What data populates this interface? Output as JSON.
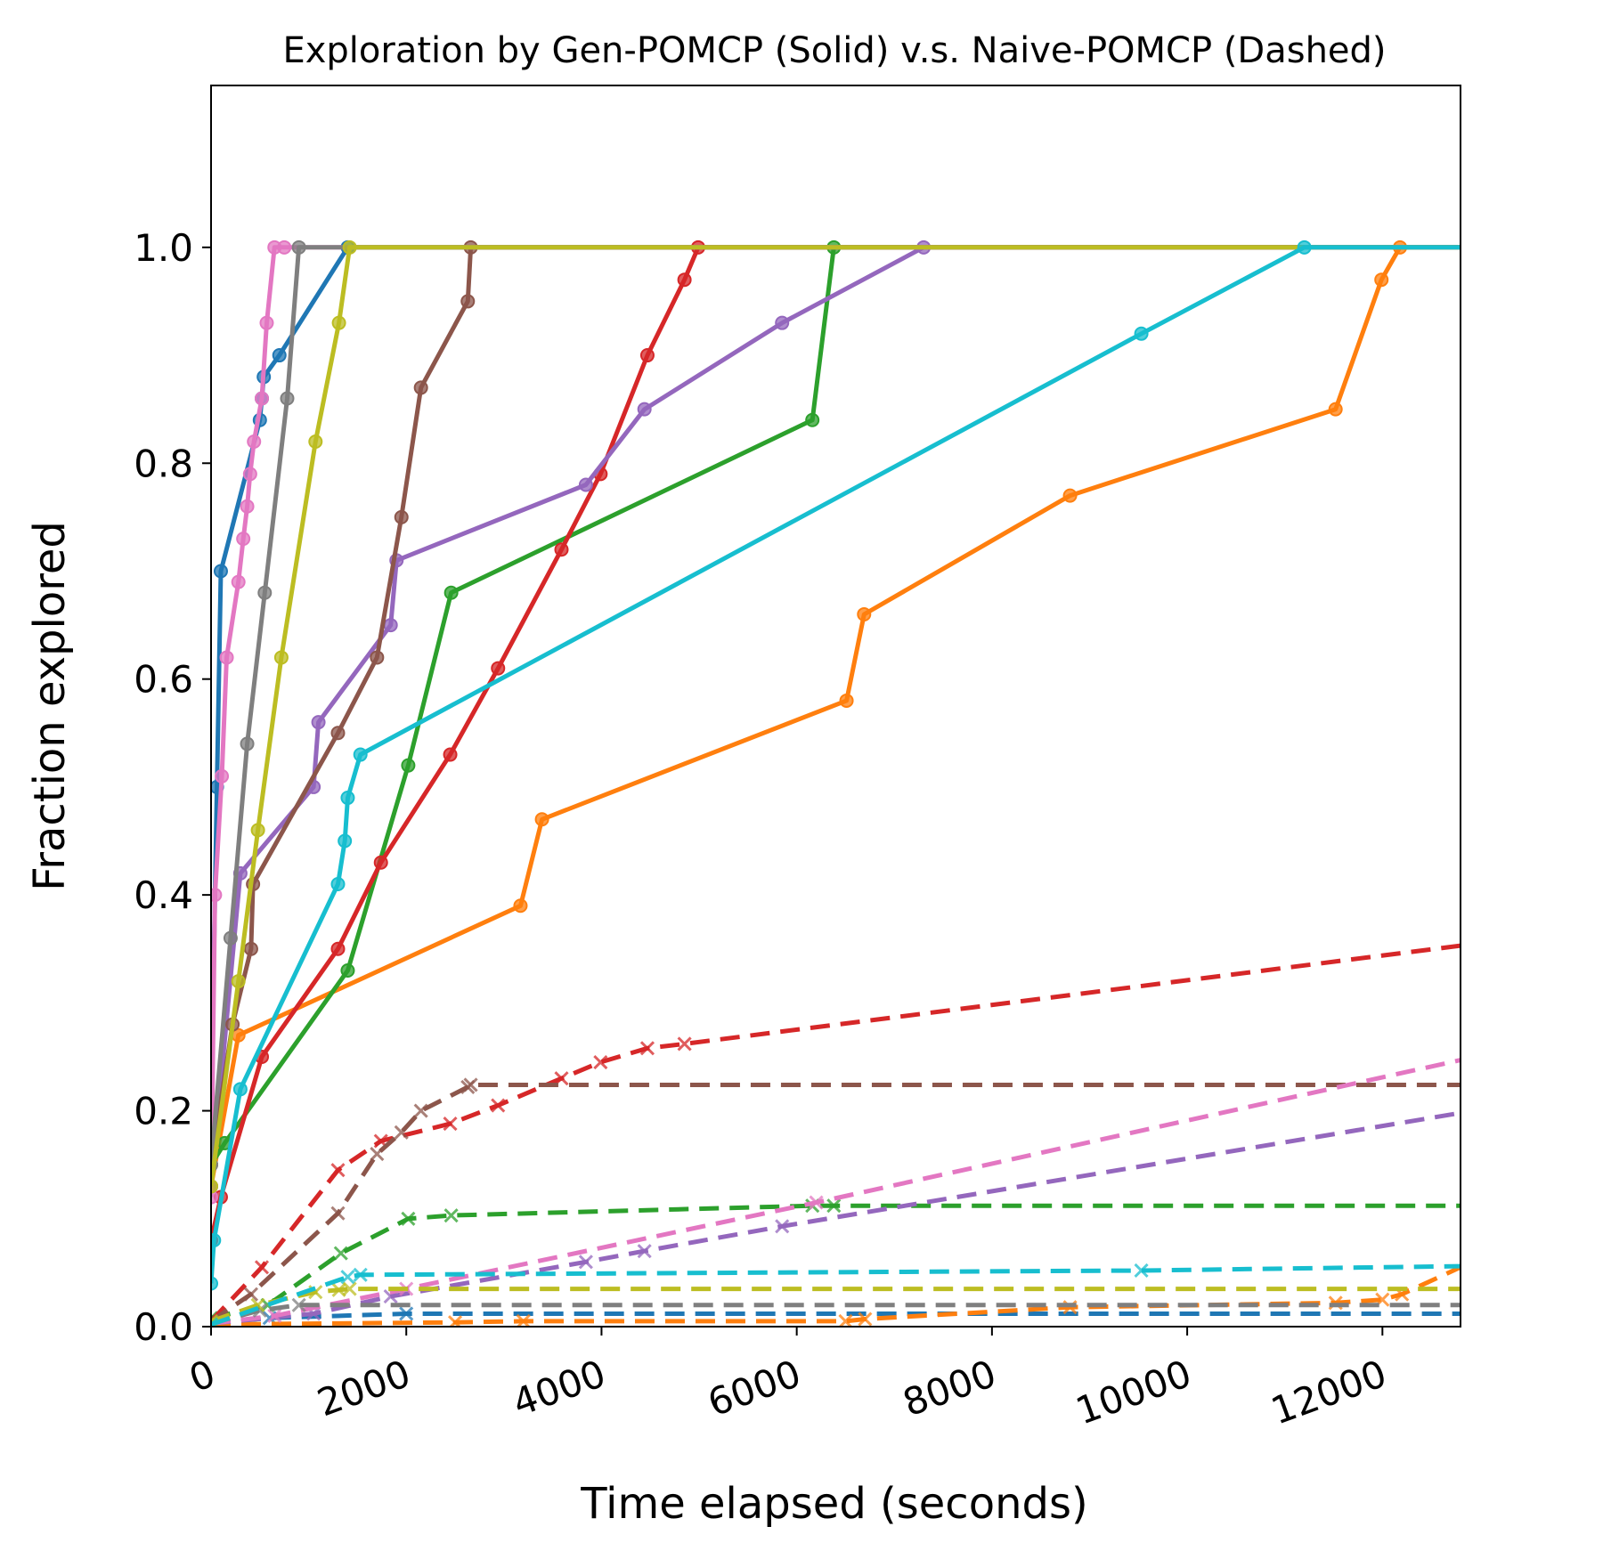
{
  "chart_data": {
    "type": "line",
    "title": "Exploration by Gen-POMCP (Solid) v.s. Naive-POMCP (Dashed)",
    "xlabel": "Time elapsed (seconds)",
    "ylabel": "Fraction explored",
    "xlim": [
      0,
      12800
    ],
    "ylim": [
      0,
      1.15
    ],
    "xticks": [
      0,
      2000,
      4000,
      6000,
      8000,
      10000,
      12000
    ],
    "xtick_labels": [
      "0",
      "2000",
      "4000",
      "6000",
      "8000",
      "10000",
      "12000"
    ],
    "yticks": [
      0.0,
      0.2,
      0.4,
      0.6,
      0.8,
      1.0
    ],
    "ytick_labels": [
      "0.0",
      "0.2",
      "0.4",
      "0.6",
      "0.8",
      "1.0"
    ],
    "grid": false,
    "legend": "none",
    "series": [
      {
        "color": "#1f77b4",
        "style": "solid",
        "marker": "o",
        "points": [
          [
            0,
            0.2
          ],
          [
            60,
            0.5
          ],
          [
            100,
            0.7
          ],
          [
            500,
            0.84
          ],
          [
            520,
            0.86
          ],
          [
            540,
            0.88
          ],
          [
            700,
            0.9
          ],
          [
            1400,
            1.0
          ],
          [
            12800,
            1.0
          ]
        ]
      },
      {
        "color": "#ff7f0e",
        "style": "solid",
        "marker": "o",
        "points": [
          [
            0,
            0.13
          ],
          [
            280,
            0.27
          ],
          [
            3170,
            0.39
          ],
          [
            3390,
            0.47
          ],
          [
            6510,
            0.58
          ],
          [
            6690,
            0.66
          ],
          [
            8800,
            0.77
          ],
          [
            11520,
            0.85
          ],
          [
            11990,
            0.97
          ],
          [
            12180,
            1.0
          ],
          [
            12800,
            1.0
          ]
        ]
      },
      {
        "color": "#2ca02c",
        "style": "solid",
        "marker": "o",
        "points": [
          [
            0,
            0.15
          ],
          [
            140,
            0.17
          ],
          [
            1400,
            0.33
          ],
          [
            2020,
            0.52
          ],
          [
            2460,
            0.68
          ],
          [
            6160,
            0.84
          ],
          [
            6380,
            1.0
          ],
          [
            12800,
            1.0
          ]
        ]
      },
      {
        "color": "#d62728",
        "style": "solid",
        "marker": "o",
        "points": [
          [
            0,
            0.08
          ],
          [
            100,
            0.12
          ],
          [
            520,
            0.25
          ],
          [
            1300,
            0.35
          ],
          [
            1740,
            0.43
          ],
          [
            2450,
            0.53
          ],
          [
            2940,
            0.61
          ],
          [
            3590,
            0.72
          ],
          [
            3990,
            0.79
          ],
          [
            4470,
            0.9
          ],
          [
            4850,
            0.97
          ],
          [
            4990,
            1.0
          ],
          [
            12800,
            1.0
          ]
        ]
      },
      {
        "color": "#9467bd",
        "style": "solid",
        "marker": "o",
        "points": [
          [
            0,
            0.13
          ],
          [
            300,
            0.42
          ],
          [
            1050,
            0.5
          ],
          [
            1100,
            0.56
          ],
          [
            1840,
            0.65
          ],
          [
            1900,
            0.71
          ],
          [
            3840,
            0.78
          ],
          [
            4440,
            0.85
          ],
          [
            5850,
            0.93
          ],
          [
            7300,
            1.0
          ],
          [
            12800,
            1.0
          ]
        ]
      },
      {
        "color": "#8c564b",
        "style": "solid",
        "marker": "o",
        "points": [
          [
            0,
            0.15
          ],
          [
            220,
            0.28
          ],
          [
            410,
            0.35
          ],
          [
            430,
            0.41
          ],
          [
            1300,
            0.55
          ],
          [
            1700,
            0.62
          ],
          [
            1950,
            0.75
          ],
          [
            2150,
            0.87
          ],
          [
            2630,
            0.95
          ],
          [
            2660,
            1.0
          ],
          [
            12800,
            1.0
          ]
        ]
      },
      {
        "color": "#e377c2",
        "style": "solid",
        "marker": "o",
        "points": [
          [
            0,
            0.12
          ],
          [
            40,
            0.4
          ],
          [
            110,
            0.51
          ],
          [
            160,
            0.62
          ],
          [
            280,
            0.69
          ],
          [
            330,
            0.73
          ],
          [
            370,
            0.76
          ],
          [
            400,
            0.79
          ],
          [
            440,
            0.82
          ],
          [
            520,
            0.86
          ],
          [
            570,
            0.93
          ],
          [
            650,
            1.0
          ],
          [
            750,
            1.0
          ],
          [
            12800,
            1.0
          ]
        ]
      },
      {
        "color": "#7f7f7f",
        "style": "solid",
        "marker": "o",
        "points": [
          [
            0,
            0.15
          ],
          [
            200,
            0.36
          ],
          [
            370,
            0.54
          ],
          [
            550,
            0.68
          ],
          [
            780,
            0.86
          ],
          [
            900,
            1.0
          ],
          [
            12800,
            1.0
          ]
        ]
      },
      {
        "color": "#bcbd22",
        "style": "solid",
        "marker": "o",
        "points": [
          [
            0,
            0.13
          ],
          [
            280,
            0.32
          ],
          [
            480,
            0.46
          ],
          [
            720,
            0.62
          ],
          [
            1070,
            0.82
          ],
          [
            1310,
            0.93
          ],
          [
            1420,
            1.0
          ],
          [
            12800,
            1.0
          ]
        ]
      },
      {
        "color": "#17becf",
        "style": "solid",
        "marker": "o",
        "points": [
          [
            0,
            0.04
          ],
          [
            30,
            0.08
          ],
          [
            300,
            0.22
          ],
          [
            1300,
            0.41
          ],
          [
            1370,
            0.45
          ],
          [
            1400,
            0.49
          ],
          [
            1530,
            0.53
          ],
          [
            9530,
            0.92
          ],
          [
            11200,
            1.0
          ],
          [
            12800,
            1.0
          ]
        ]
      },
      {
        "color": "#1f77b4",
        "style": "dashed",
        "marker": "x",
        "points": [
          [
            0,
            0.003
          ],
          [
            600,
            0.008
          ],
          [
            2000,
            0.012
          ],
          [
            12800,
            0.012
          ]
        ]
      },
      {
        "color": "#ff7f0e",
        "style": "dashed",
        "marker": "x",
        "points": [
          [
            0,
            0.002
          ],
          [
            2500,
            0.004
          ],
          [
            3200,
            0.005
          ],
          [
            6500,
            0.005
          ],
          [
            6700,
            0.007
          ],
          [
            8800,
            0.018
          ],
          [
            11520,
            0.022
          ],
          [
            12000,
            0.025
          ],
          [
            12200,
            0.03
          ],
          [
            12800,
            0.055
          ]
        ]
      },
      {
        "color": "#2ca02c",
        "style": "dashed",
        "marker": "x",
        "points": [
          [
            0,
            0.008
          ],
          [
            580,
            0.02
          ],
          [
            1330,
            0.068
          ],
          [
            2020,
            0.1
          ],
          [
            2460,
            0.103
          ],
          [
            6160,
            0.112
          ],
          [
            6380,
            0.112
          ],
          [
            12800,
            0.112
          ]
        ]
      },
      {
        "color": "#d62728",
        "style": "dashed",
        "marker": "x",
        "points": [
          [
            0,
            0.005
          ],
          [
            520,
            0.055
          ],
          [
            1300,
            0.145
          ],
          [
            1740,
            0.172
          ],
          [
            2450,
            0.188
          ],
          [
            2940,
            0.205
          ],
          [
            3590,
            0.23
          ],
          [
            3990,
            0.245
          ],
          [
            4470,
            0.258
          ],
          [
            4850,
            0.262
          ],
          [
            12800,
            0.353
          ]
        ]
      },
      {
        "color": "#9467bd",
        "style": "dashed",
        "marker": "x",
        "points": [
          [
            0,
            0.003
          ],
          [
            1050,
            0.012
          ],
          [
            1840,
            0.028
          ],
          [
            3840,
            0.06
          ],
          [
            4440,
            0.07
          ],
          [
            5850,
            0.093
          ],
          [
            12800,
            0.198
          ]
        ]
      },
      {
        "color": "#8c564b",
        "style": "dashed",
        "marker": "x",
        "points": [
          [
            0,
            0.005
          ],
          [
            410,
            0.03
          ],
          [
            1300,
            0.105
          ],
          [
            1700,
            0.16
          ],
          [
            1950,
            0.18
          ],
          [
            2150,
            0.2
          ],
          [
            2630,
            0.222
          ],
          [
            2660,
            0.224
          ],
          [
            12800,
            0.224
          ]
        ]
      },
      {
        "color": "#e377c2",
        "style": "dashed",
        "marker": "x",
        "points": [
          [
            0,
            0.003
          ],
          [
            650,
            0.01
          ],
          [
            2000,
            0.035
          ],
          [
            6200,
            0.115
          ],
          [
            12800,
            0.247
          ]
        ]
      },
      {
        "color": "#7f7f7f",
        "style": "dashed",
        "marker": "x",
        "points": [
          [
            0,
            0.003
          ],
          [
            500,
            0.015
          ],
          [
            900,
            0.02
          ],
          [
            12800,
            0.02
          ]
        ]
      },
      {
        "color": "#bcbd22",
        "style": "dashed",
        "marker": "x",
        "points": [
          [
            0,
            0.005
          ],
          [
            480,
            0.02
          ],
          [
            1070,
            0.032
          ],
          [
            1310,
            0.034
          ],
          [
            1420,
            0.035
          ],
          [
            12800,
            0.035
          ]
        ]
      },
      {
        "color": "#17becf",
        "style": "dashed",
        "marker": "x",
        "points": [
          [
            0,
            0.002
          ],
          [
            1400,
            0.046
          ],
          [
            1530,
            0.048
          ],
          [
            9530,
            0.052
          ],
          [
            12800,
            0.056
          ]
        ]
      }
    ]
  }
}
